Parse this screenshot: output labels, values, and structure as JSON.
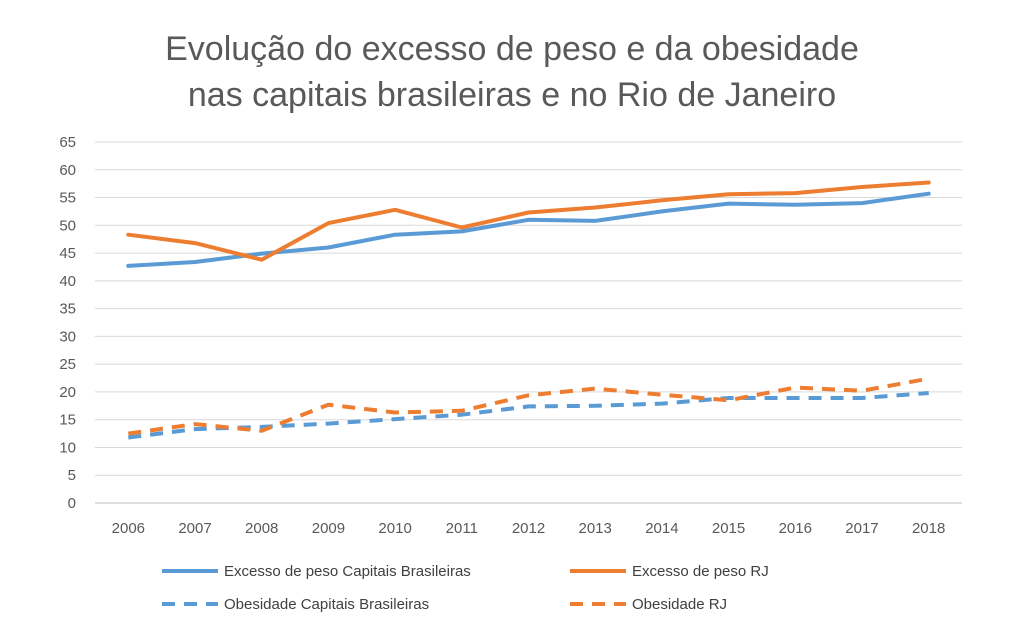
{
  "chart_data": {
    "type": "line",
    "title_line1": "Evolução do excesso de peso e da obesidade",
    "title_line2": "nas capitais brasileiras e no Rio de Janeiro",
    "xlabel": "",
    "ylabel": "",
    "x": [
      "2006",
      "2007",
      "2008",
      "2009",
      "2010",
      "2011",
      "2012",
      "2013",
      "2014",
      "2015",
      "2016",
      "2017",
      "2018"
    ],
    "ylim": [
      0,
      65
    ],
    "yticks": [
      0,
      5,
      10,
      15,
      20,
      25,
      30,
      35,
      40,
      45,
      50,
      55,
      60,
      65
    ],
    "grid": true,
    "legend_position": "bottom",
    "series": [
      {
        "name": "Excesso de peso Capitais Brasileiras",
        "color": "#5B9BD5",
        "dash": "solid",
        "values": [
          42.7,
          43.4,
          44.9,
          46.0,
          48.3,
          48.9,
          51.0,
          50.8,
          52.5,
          53.9,
          53.7,
          54.0,
          55.7
        ]
      },
      {
        "name": "Excesso de peso RJ",
        "color": "#ED7D31",
        "dash": "solid",
        "values": [
          48.3,
          46.8,
          43.8,
          50.4,
          52.8,
          49.6,
          52.3,
          53.2,
          54.5,
          55.6,
          55.8,
          56.9,
          57.7
        ]
      },
      {
        "name": "Obesidade Capitais Brasileiras",
        "color": "#5B9BD5",
        "dash": "dashed",
        "values": [
          11.8,
          13.3,
          13.7,
          14.3,
          15.1,
          15.9,
          17.4,
          17.5,
          17.9,
          18.9,
          18.9,
          18.9,
          19.8
        ]
      },
      {
        "name": "Obesidade RJ",
        "color": "#ED7D31",
        "dash": "dashed",
        "values": [
          12.5,
          14.2,
          13.0,
          17.7,
          16.3,
          16.6,
          19.4,
          20.6,
          19.5,
          18.5,
          20.8,
          20.2,
          22.4
        ]
      }
    ]
  }
}
